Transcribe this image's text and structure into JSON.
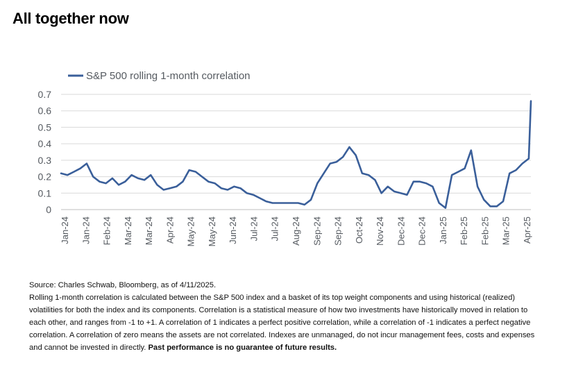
{
  "title": "All together now",
  "legend_label": "S&P 500 rolling 1-month correlation",
  "colors": {
    "series": "#3a5f9a",
    "grid": "#d9d9d9",
    "axis": "#555a60"
  },
  "chart_data": {
    "type": "line",
    "title": "",
    "xlabel": "",
    "ylabel": "",
    "ylim": [
      0,
      0.7
    ],
    "y_ticks": [
      0,
      0.1,
      0.2,
      0.3,
      0.4,
      0.5,
      0.6,
      0.7
    ],
    "y_tick_labels": [
      "0",
      "0.1",
      "0.2",
      "0.3",
      "0.4",
      "0.5",
      "0.6",
      "0.7"
    ],
    "x_tick_labels": [
      "Jan-24",
      "Jan-24",
      "Feb-24",
      "Mar-24",
      "Mar-24",
      "Apr-24",
      "May-24",
      "May-24",
      "Jun-24",
      "Jul-24",
      "Jul-24",
      "Aug-24",
      "Sep-24",
      "Sep-24",
      "Oct-24",
      "Nov-24",
      "Dec-24",
      "Dec-24",
      "Jan-25",
      "Feb-25",
      "Feb-25",
      "Mar-25",
      "Apr-25"
    ],
    "grid": true,
    "legend_position": "top-left",
    "series": [
      {
        "name": "S&P 500 rolling 1-month correlation",
        "color": "#3a5f9a",
        "x": [
          0,
          0.3,
          0.6,
          0.9,
          1.2,
          1.5,
          1.8,
          2.1,
          2.4,
          2.7,
          3.0,
          3.3,
          3.6,
          3.9,
          4.2,
          4.5,
          4.8,
          5.1,
          5.4,
          5.7,
          6.0,
          6.3,
          6.6,
          6.9,
          7.2,
          7.5,
          7.8,
          8.1,
          8.4,
          8.7,
          9.0,
          9.3,
          9.6,
          9.9,
          10.2,
          10.5,
          10.8,
          11.1,
          11.4,
          11.7,
          12.0,
          12.3,
          12.6,
          12.9,
          13.2,
          13.5,
          13.8,
          14.1,
          14.4,
          14.7,
          15.0,
          15.3,
          15.6,
          15.9,
          16.2,
          16.5,
          16.8,
          17.1,
          17.4,
          17.7,
          18.0,
          18.3,
          18.6,
          18.9,
          19.2,
          19.5,
          19.8,
          20.1,
          20.4,
          20.7,
          21.0,
          21.3,
          21.6,
          21.9,
          22.0
        ],
        "y": [
          0.22,
          0.21,
          0.23,
          0.25,
          0.28,
          0.2,
          0.17,
          0.16,
          0.19,
          0.15,
          0.17,
          0.21,
          0.19,
          0.18,
          0.21,
          0.15,
          0.12,
          0.13,
          0.14,
          0.17,
          0.24,
          0.23,
          0.2,
          0.17,
          0.16,
          0.13,
          0.12,
          0.14,
          0.13,
          0.1,
          0.09,
          0.07,
          0.05,
          0.04,
          0.04,
          0.04,
          0.04,
          0.04,
          0.03,
          0.06,
          0.16,
          0.22,
          0.28,
          0.29,
          0.32,
          0.38,
          0.33,
          0.22,
          0.21,
          0.18,
          0.1,
          0.14,
          0.11,
          0.1,
          0.09,
          0.17,
          0.17,
          0.16,
          0.14,
          0.04,
          0.01,
          0.21,
          0.23,
          0.25,
          0.36,
          0.14,
          0.06,
          0.02,
          0.02,
          0.05,
          0.22,
          0.24,
          0.28,
          0.31,
          0.66
        ]
      }
    ]
  },
  "notes": {
    "source": "Source: Charles Schwab, Bloomberg, as of 4/11/2025.",
    "body": "Rolling 1-month correlation is calculated between the S&P 500 index and a basket of its top weight components and using historical (realized) volatilities for both the index and its components.  Correlation is a statistical measure of how two investments have historically moved in relation to each other, and ranges from -1 to +1. A correlation of 1 indicates a perfect positive correlation, while a correlation of -1 indicates a perfect negative correlation. A correlation of zero means the assets are not correlated. Indexes are unmanaged, do not incur management fees, costs and expenses and cannot be invested in directly.",
    "disclaimer": "Past performance is no guarantee of future results."
  }
}
